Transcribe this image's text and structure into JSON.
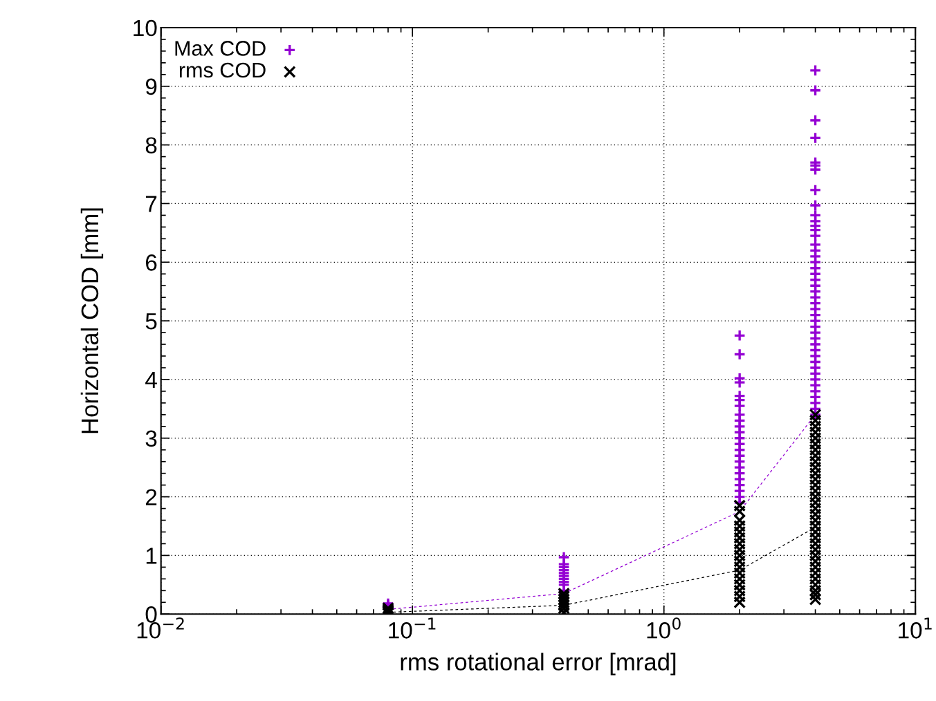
{
  "chart_data": {
    "type": "scatter",
    "xlabel": "rms rotational error [mrad]",
    "ylabel": "Horizontal COD [mm]",
    "log": "x",
    "xlim": [
      0.01,
      10
    ],
    "xticks": [
      {
        "value": 0.01,
        "label": "10$^{−2}$"
      },
      {
        "value": 0.1,
        "label": "10$^{−1}$"
      },
      {
        "value": 1,
        "label": "10$^{0}$"
      },
      {
        "value": 10,
        "label": "10$^{1}$"
      }
    ],
    "ylim": [
      0,
      10
    ],
    "yticks": [
      0,
      1,
      2,
      3,
      4,
      5,
      6,
      7,
      8,
      9,
      10
    ],
    "grid": true,
    "legend": "top left",
    "series": [
      {
        "name": "Max COD",
        "color": "#9400d3",
        "marker": "plus",
        "x": [
          0.08,
          0.08,
          0.08,
          0.4,
          0.4,
          0.4,
          0.4,
          0.4,
          0.4,
          0.4,
          0.4,
          0.4,
          0.4,
          2,
          2,
          2,
          2,
          2,
          2,
          2,
          2,
          2,
          2,
          2,
          2,
          2,
          2,
          2,
          2,
          2,
          2,
          2,
          2,
          2,
          2,
          2,
          4,
          4,
          4,
          4,
          4,
          4,
          4,
          4,
          4,
          4,
          4,
          4,
          4,
          4,
          4,
          4,
          4,
          4,
          4,
          4,
          4,
          4,
          4,
          4,
          4,
          4,
          4,
          4,
          4,
          4,
          4,
          4,
          4,
          4,
          4,
          4,
          4,
          4,
          4,
          4,
          4,
          4,
          4,
          4
        ],
        "values": [
          0.18,
          0.15,
          0.12,
          0.97,
          0.85,
          0.8,
          0.75,
          0.7,
          0.65,
          0.6,
          0.55,
          0.5,
          0.4,
          4.75,
          4.43,
          4.02,
          3.95,
          3.72,
          3.65,
          3.55,
          3.4,
          3.3,
          3.2,
          3.1,
          3.0,
          2.9,
          2.8,
          2.7,
          2.6,
          2.5,
          2.4,
          2.3,
          2.2,
          2.1,
          2.0,
          1.9,
          9.27,
          8.93,
          8.42,
          8.12,
          7.7,
          7.65,
          7.58,
          7.23,
          6.97,
          6.8,
          6.7,
          6.62,
          6.55,
          6.45,
          6.3,
          6.2,
          6.1,
          6.0,
          5.9,
          5.8,
          5.7,
          5.6,
          5.5,
          5.4,
          5.3,
          5.2,
          5.1,
          5.0,
          4.9,
          4.8,
          4.7,
          4.6,
          4.5,
          4.4,
          4.3,
          4.2,
          4.1,
          4.0,
          3.9,
          3.8,
          3.7,
          3.6,
          3.5,
          3.4
        ]
      },
      {
        "name": "rms COD",
        "color": "#000000",
        "marker": "cross",
        "x": [
          0.08,
          0.08,
          0.08,
          0.08,
          0.08,
          0.4,
          0.4,
          0.4,
          0.4,
          0.4,
          0.4,
          0.4,
          2,
          2,
          2,
          2,
          2,
          2,
          2,
          2,
          2,
          2,
          2,
          2,
          2,
          2,
          2,
          2,
          2,
          4,
          4,
          4,
          4,
          4,
          4,
          4,
          4,
          4,
          4,
          4,
          4,
          4,
          4,
          4,
          4,
          4,
          4,
          4,
          4,
          4,
          4,
          4,
          4,
          4,
          4,
          4,
          4,
          4,
          4,
          4,
          4,
          4
        ],
        "values": [
          0.1,
          0.07,
          0.05,
          0.03,
          0.01,
          0.35,
          0.3,
          0.25,
          0.2,
          0.15,
          0.1,
          0.02,
          1.85,
          1.75,
          1.6,
          1.5,
          1.4,
          1.3,
          1.2,
          1.1,
          1.0,
          0.9,
          0.8,
          0.7,
          0.6,
          0.5,
          0.4,
          0.3,
          0.2,
          3.4,
          3.3,
          3.2,
          3.1,
          3.0,
          2.9,
          2.8,
          2.7,
          2.6,
          2.5,
          2.4,
          2.3,
          2.2,
          2.1,
          2.0,
          1.9,
          1.8,
          1.7,
          1.6,
          1.5,
          1.4,
          1.3,
          1.2,
          1.1,
          1.0,
          0.9,
          0.8,
          0.7,
          0.6,
          0.5,
          0.4,
          0.33,
          0.25
        ]
      },
      {
        "type": "line",
        "color": "#9400d3",
        "marker": "none",
        "line_style": "dashed",
        "x": [
          0.08,
          0.4,
          2,
          4
        ],
        "values": [
          0.08,
          0.35,
          1.75,
          3.4
        ]
      },
      {
        "type": "line",
        "color": "#000000",
        "marker": "none",
        "line_style": "dashed",
        "x": [
          0.08,
          0.4,
          2,
          4
        ],
        "values": [
          0.03,
          0.15,
          0.75,
          1.48
        ]
      }
    ]
  }
}
